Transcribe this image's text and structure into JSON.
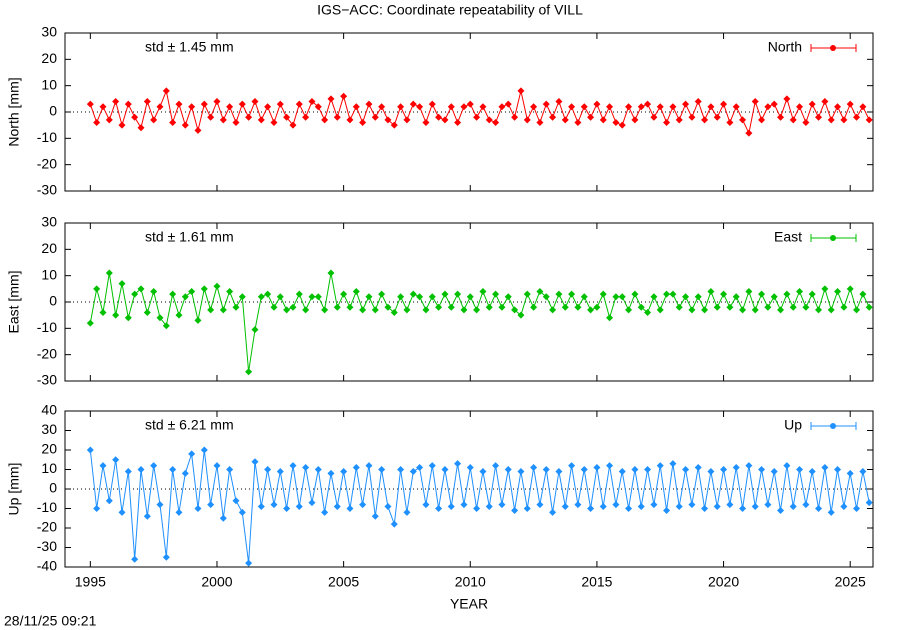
{
  "title": "IGS−ACC: Coordinate repeatability of VILL",
  "timestamp": "28/11/25 09:21",
  "chart_data": [
    {
      "type": "line",
      "y_label": "North [mm]",
      "annotation": "std ± 1.45 mm",
      "xlim": [
        1994,
        2025.9
      ],
      "xticks": [
        1995,
        2000,
        2005,
        2010,
        2015,
        2020,
        2025
      ],
      "ylim": [
        -30,
        30
      ],
      "yticks": [
        -30,
        -20,
        -10,
        0,
        10,
        20,
        30
      ],
      "zero_line": true,
      "legend": "top-right",
      "series": [
        {
          "name": "North",
          "color": "#ff0000",
          "x": [
            1995,
            1995.25,
            1995.5,
            1995.75,
            1996,
            1996.25,
            1996.5,
            1996.75,
            1997,
            1997.25,
            1997.5,
            1997.75,
            1998,
            1998.25,
            1998.5,
            1998.75,
            1999,
            1999.25,
            1999.5,
            1999.75,
            2000,
            2000.25,
            2000.5,
            2000.75,
            2001,
            2001.25,
            2001.5,
            2001.75,
            2002,
            2002.25,
            2002.5,
            2002.75,
            2003,
            2003.25,
            2003.5,
            2003.75,
            2004,
            2004.25,
            2004.5,
            2004.75,
            2005,
            2005.25,
            2005.5,
            2005.75,
            2006,
            2006.25,
            2006.5,
            2006.75,
            2007,
            2007.25,
            2007.5,
            2007.75,
            2008,
            2008.25,
            2008.5,
            2008.75,
            2009,
            2009.25,
            2009.5,
            2009.75,
            2010,
            2010.25,
            2010.5,
            2010.75,
            2011,
            2011.25,
            2011.5,
            2011.75,
            2012,
            2012.25,
            2012.5,
            2012.75,
            2013,
            2013.25,
            2013.5,
            2013.75,
            2014,
            2014.25,
            2014.5,
            2014.75,
            2015,
            2015.25,
            2015.5,
            2015.75,
            2016,
            2016.25,
            2016.5,
            2016.75,
            2017,
            2017.25,
            2017.5,
            2017.75,
            2018,
            2018.25,
            2018.5,
            2018.75,
            2019,
            2019.25,
            2019.5,
            2019.75,
            2020,
            2020.25,
            2020.5,
            2020.75,
            2021,
            2021.25,
            2021.5,
            2021.75,
            2022,
            2022.25,
            2022.5,
            2022.75,
            2023,
            2023.25,
            2023.5,
            2023.75,
            2024,
            2024.25,
            2024.5,
            2024.75,
            2025,
            2025.25,
            2025.5,
            2025.75
          ],
          "values": [
            3,
            -4,
            2,
            -3,
            4,
            -5,
            3,
            -2,
            -6,
            4,
            -3,
            2,
            8,
            -4,
            3,
            -5,
            2,
            -7,
            3,
            -2,
            4,
            -3,
            2,
            -4,
            3,
            -2,
            4,
            -3,
            2,
            -4,
            3,
            -2,
            -5,
            3,
            -2,
            4,
            2,
            -3,
            5,
            -2,
            6,
            -3,
            2,
            -4,
            3,
            -2,
            2,
            -3,
            -5,
            2,
            -3,
            3,
            2,
            -4,
            3,
            -2,
            -3,
            2,
            -4,
            2,
            3,
            -2,
            2,
            -3,
            -4,
            2,
            3,
            -2,
            8,
            -3,
            2,
            -4,
            3,
            -2,
            4,
            -3,
            2,
            -4,
            2,
            -2,
            3,
            -3,
            2,
            -4,
            -5,
            2,
            -3,
            2,
            3,
            -2,
            2,
            -4,
            2,
            -3,
            3,
            -2,
            4,
            -3,
            2,
            -2,
            3,
            -4,
            2,
            -3,
            -8,
            4,
            -3,
            2,
            3,
            -2,
            5,
            -3,
            2,
            -4,
            3,
            -2,
            4,
            -3,
            2,
            -3,
            3,
            -2,
            2,
            -3
          ]
        }
      ]
    },
    {
      "type": "line",
      "y_label": "East [mm]",
      "annotation": "std ± 1.61 mm",
      "xlim": [
        1994,
        2025.9
      ],
      "xticks": [
        1995,
        2000,
        2005,
        2010,
        2015,
        2020,
        2025
      ],
      "ylim": [
        -30,
        30
      ],
      "yticks": [
        -30,
        -20,
        -10,
        0,
        10,
        20,
        30
      ],
      "zero_line": true,
      "legend": "top-right",
      "series": [
        {
          "name": "East",
          "color": "#00c000",
          "x": [
            1995,
            1995.25,
            1995.5,
            1995.75,
            1996,
            1996.25,
            1996.5,
            1996.75,
            1997,
            1997.25,
            1997.5,
            1997.75,
            1998,
            1998.25,
            1998.5,
            1998.75,
            1999,
            1999.25,
            1999.5,
            1999.75,
            2000,
            2000.25,
            2000.5,
            2000.75,
            2001,
            2001.25,
            2001.5,
            2001.75,
            2002,
            2002.25,
            2002.5,
            2002.75,
            2003,
            2003.25,
            2003.5,
            2003.75,
            2004,
            2004.25,
            2004.5,
            2004.75,
            2005,
            2005.25,
            2005.5,
            2005.75,
            2006,
            2006.25,
            2006.5,
            2006.75,
            2007,
            2007.25,
            2007.5,
            2007.75,
            2008,
            2008.25,
            2008.5,
            2008.75,
            2009,
            2009.25,
            2009.5,
            2009.75,
            2010,
            2010.25,
            2010.5,
            2010.75,
            2011,
            2011.25,
            2011.5,
            2011.75,
            2012,
            2012.25,
            2012.5,
            2012.75,
            2013,
            2013.25,
            2013.5,
            2013.75,
            2014,
            2014.25,
            2014.5,
            2014.75,
            2015,
            2015.25,
            2015.5,
            2015.75,
            2016,
            2016.25,
            2016.5,
            2016.75,
            2017,
            2017.25,
            2017.5,
            2017.75,
            2018,
            2018.25,
            2018.5,
            2018.75,
            2019,
            2019.25,
            2019.5,
            2019.75,
            2020,
            2020.25,
            2020.5,
            2020.75,
            2021,
            2021.25,
            2021.5,
            2021.75,
            2022,
            2022.25,
            2022.5,
            2022.75,
            2023,
            2023.25,
            2023.5,
            2023.75,
            2024,
            2024.25,
            2024.5,
            2024.75,
            2025,
            2025.25,
            2025.5,
            2025.75
          ],
          "values": [
            -8,
            5,
            -4,
            11,
            -5,
            7,
            -6,
            3,
            5,
            -4,
            4,
            -6,
            -9,
            3,
            -5,
            2,
            4,
            -7,
            5,
            -3,
            6,
            -3,
            4,
            -2,
            2,
            -26.5,
            -10.5,
            2,
            3,
            -2,
            2,
            -3,
            -2,
            3,
            -3,
            2,
            2,
            -3,
            11,
            -2,
            3,
            -2,
            4,
            -3,
            2,
            -3,
            3,
            -2,
            -4,
            2,
            -3,
            3,
            2,
            -3,
            2,
            -2,
            3,
            -2,
            3,
            -3,
            2,
            -3,
            4,
            -2,
            3,
            -2,
            2,
            -3,
            -5,
            3,
            -2,
            4,
            2,
            -3,
            3,
            -2,
            3,
            -2,
            2,
            -3,
            -2,
            3,
            -6,
            2,
            2,
            -3,
            3,
            -2,
            -4,
            2,
            -3,
            3,
            3,
            -2,
            2,
            -3,
            2,
            -3,
            4,
            -2,
            3,
            -2,
            2,
            -3,
            4,
            -3,
            3,
            -2,
            2,
            -3,
            3,
            -2,
            4,
            -2,
            3,
            -3,
            5,
            -3,
            4,
            -2,
            5,
            -3,
            3,
            -2
          ]
        }
      ]
    },
    {
      "type": "line",
      "y_label": "Up [mm]",
      "annotation": "std ± 6.21 mm",
      "x_label": "YEAR",
      "xlim": [
        1994,
        2025.9
      ],
      "xticks": [
        1995,
        2000,
        2005,
        2010,
        2015,
        2020,
        2025
      ],
      "ylim": [
        -40,
        40
      ],
      "yticks": [
        -40,
        -30,
        -20,
        -10,
        0,
        10,
        20,
        30,
        40
      ],
      "zero_line": true,
      "legend": "top-right",
      "series": [
        {
          "name": "Up",
          "color": "#1e90ff",
          "x": [
            1995,
            1995.25,
            1995.5,
            1995.75,
            1996,
            1996.25,
            1996.5,
            1996.75,
            1997,
            1997.25,
            1997.5,
            1997.75,
            1998,
            1998.25,
            1998.5,
            1998.75,
            1999,
            1999.25,
            1999.5,
            1999.75,
            2000,
            2000.25,
            2000.5,
            2000.75,
            2001,
            2001.25,
            2001.5,
            2001.75,
            2002,
            2002.25,
            2002.5,
            2002.75,
            2003,
            2003.25,
            2003.5,
            2003.75,
            2004,
            2004.25,
            2004.5,
            2004.75,
            2005,
            2005.25,
            2005.5,
            2005.75,
            2006,
            2006.25,
            2006.5,
            2006.75,
            2007,
            2007.25,
            2007.5,
            2007.75,
            2008,
            2008.25,
            2008.5,
            2008.75,
            2009,
            2009.25,
            2009.5,
            2009.75,
            2010,
            2010.25,
            2010.5,
            2010.75,
            2011,
            2011.25,
            2011.5,
            2011.75,
            2012,
            2012.25,
            2012.5,
            2012.75,
            2013,
            2013.25,
            2013.5,
            2013.75,
            2014,
            2014.25,
            2014.5,
            2014.75,
            2015,
            2015.25,
            2015.5,
            2015.75,
            2016,
            2016.25,
            2016.5,
            2016.75,
            2017,
            2017.25,
            2017.5,
            2017.75,
            2018,
            2018.25,
            2018.5,
            2018.75,
            2019,
            2019.25,
            2019.5,
            2019.75,
            2020,
            2020.25,
            2020.5,
            2020.75,
            2021,
            2021.25,
            2021.5,
            2021.75,
            2022,
            2022.25,
            2022.5,
            2022.75,
            2023,
            2023.25,
            2023.5,
            2023.75,
            2024,
            2024.25,
            2024.5,
            2024.75,
            2025,
            2025.25,
            2025.5,
            2025.75
          ],
          "values": [
            20,
            -10,
            12,
            -6,
            15,
            -12,
            9,
            -36,
            10,
            -14,
            12,
            -8,
            -35,
            10,
            -12,
            8,
            18,
            -10,
            20,
            -8,
            12,
            -15,
            10,
            -6,
            -12,
            -38,
            14,
            -9,
            10,
            -8,
            9,
            -10,
            12,
            -9,
            11,
            -7,
            10,
            -12,
            8,
            -9,
            9,
            -10,
            11,
            -8,
            12,
            -14,
            10,
            -9,
            -18,
            10,
            -12,
            9,
            11,
            -8,
            12,
            -10,
            10,
            -9,
            13,
            -8,
            11,
            -10,
            9,
            -9,
            12,
            -8,
            10,
            -11,
            9,
            -10,
            11,
            -8,
            10,
            -12,
            9,
            -9,
            12,
            -8,
            10,
            -10,
            11,
            -9,
            12,
            -8,
            9,
            -10,
            10,
            -9,
            10,
            -8,
            12,
            -11,
            13,
            -9,
            10,
            -8,
            11,
            -10,
            9,
            -9,
            10,
            -8,
            11,
            -10,
            12,
            -9,
            10,
            -8,
            9,
            -11,
            12,
            -9,
            10,
            -8,
            9,
            -10,
            11,
            -12,
            10,
            -9,
            8,
            -10,
            9,
            -7
          ]
        }
      ]
    }
  ]
}
